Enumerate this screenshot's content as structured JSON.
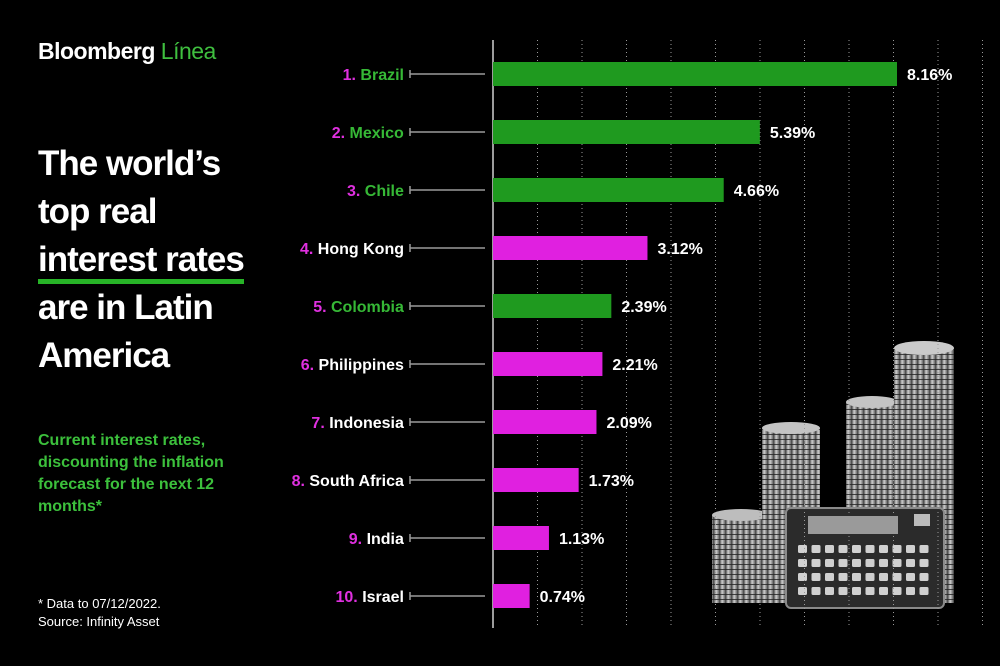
{
  "header": {
    "brand": "Bloomberg",
    "brand_sub": "Línea"
  },
  "headline": {
    "line1": "The world’s",
    "line2": "top real",
    "line3": "interest rates",
    "line4": "are in Latin",
    "line5": "America"
  },
  "subtitle": "Current interest rates, discounting the inflation forecast for the next 12 months*",
  "footnote": {
    "line1": "* Data to 07/12/2022.",
    "line2": "Source: Infinity Asset"
  },
  "colors": {
    "latam": "#1f9a1f",
    "other": "#e020e0",
    "rank": "#e030e0",
    "latam_label": "#36b836"
  },
  "chart_data": {
    "type": "bar",
    "orientation": "horizontal",
    "title": "The world’s top real interest rates are in Latin America",
    "grid": true,
    "xlim": [
      0,
      8.16
    ],
    "categories": [
      "Brazil",
      "Mexico",
      "Chile",
      "Hong Kong",
      "Colombia",
      "Philippines",
      "Indonesia",
      "South Africa",
      "India",
      "Israel"
    ],
    "ranks": [
      "1.",
      "2.",
      "3.",
      "4.",
      "5.",
      "6.",
      "7.",
      "8.",
      "9.",
      "10."
    ],
    "values": [
      8.16,
      5.39,
      4.66,
      3.12,
      2.39,
      2.21,
      2.09,
      1.73,
      1.13,
      0.74
    ],
    "value_labels": [
      "8.16%",
      "5.39%",
      "4.66%",
      "3.12%",
      "2.39%",
      "2.21%",
      "2.09%",
      "1.73%",
      "1.13%",
      "0.74%"
    ],
    "latam": [
      true,
      true,
      true,
      false,
      true,
      false,
      false,
      false,
      false,
      false
    ]
  }
}
